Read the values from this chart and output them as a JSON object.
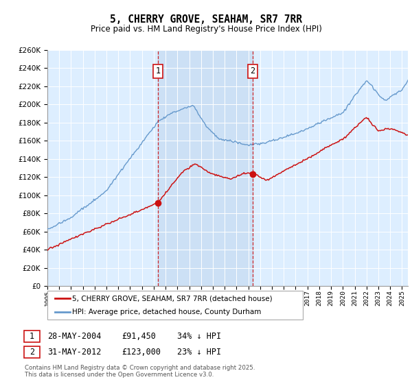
{
  "title": "5, CHERRY GROVE, SEAHAM, SR7 7RR",
  "subtitle": "Price paid vs. HM Land Registry's House Price Index (HPI)",
  "background_color": "#ffffff",
  "plot_bg_color": "#ddeeff",
  "shaded_region_color": "#cce0f5",
  "grid_color": "#d0d8e8",
  "line1_color": "#cc1111",
  "line2_color": "#6699cc",
  "line1_label": "5, CHERRY GROVE, SEAHAM, SR7 7RR (detached house)",
  "line2_label": "HPI: Average price, detached house, County Durham",
  "sale1_year": 2004.38,
  "sale1_price": 91450,
  "sale2_year": 2012.41,
  "sale2_price": 123000,
  "ylim_min": 0,
  "ylim_max": 260000,
  "ytick_step": 20000,
  "xmin": 1995,
  "xmax": 2025.5
}
